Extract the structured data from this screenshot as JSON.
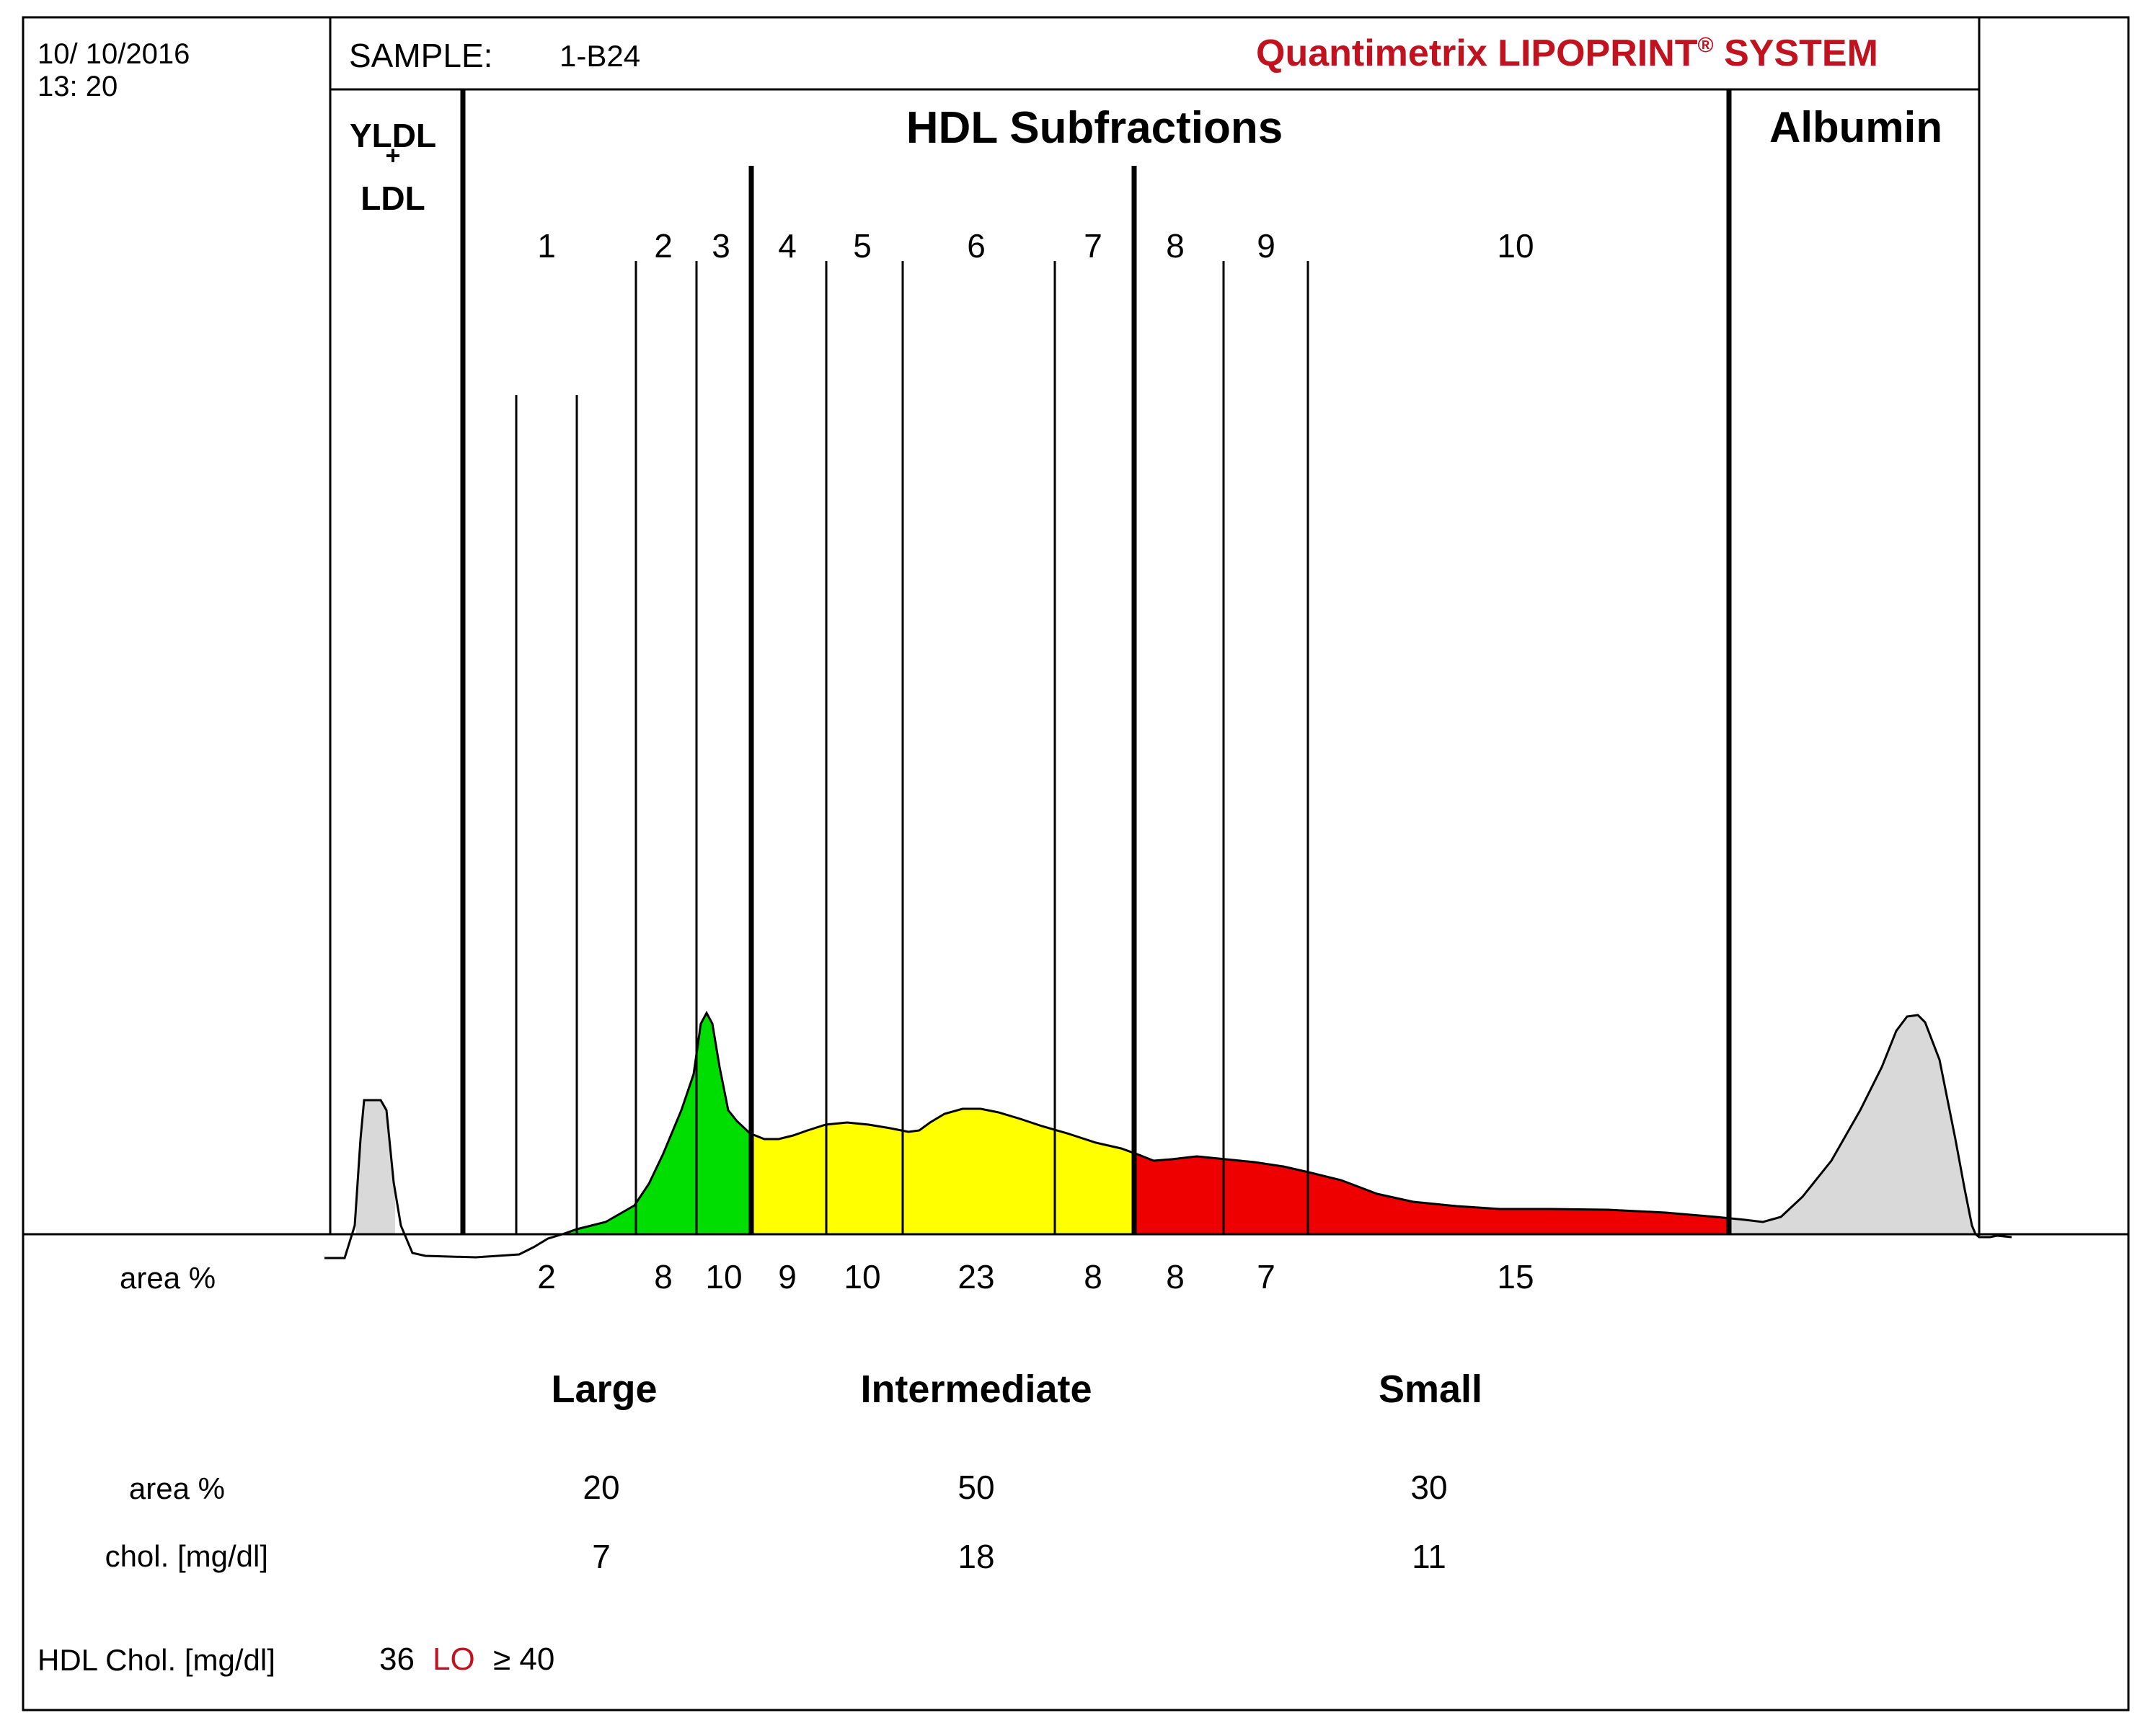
{
  "header": {
    "date": "10/ 10/2016",
    "time": "13: 20",
    "sample_label": "SAMPLE:",
    "sample_id": "1-B24",
    "brand_main": "Quantimetrix LIPOPRINT",
    "brand_mark": "®",
    "brand_suffix": "SYSTEM",
    "brand_color": "#c1121f"
  },
  "chart_data": {
    "type": "area",
    "title": "HDL Subfractions",
    "region_labels": {
      "vldl_ldl": [
        "YLDL",
        "+",
        "LDL"
      ],
      "hdl": "HDL Subfractions",
      "albumin": "Albumin"
    },
    "subfractions": [
      {
        "label": "1",
        "area_pct": "2",
        "color": "#00dd00"
      },
      {
        "label": "2",
        "area_pct": "8",
        "color": "#00dd00"
      },
      {
        "label": "3",
        "area_pct": "10",
        "color": "#00dd00"
      },
      {
        "label": "4",
        "area_pct": "9",
        "color": "#ffff00"
      },
      {
        "label": "5",
        "area_pct": "10",
        "color": "#ffff00"
      },
      {
        "label": "6",
        "area_pct": "23",
        "color": "#ffff00"
      },
      {
        "label": "7",
        "area_pct": "8",
        "color": "#ffff00"
      },
      {
        "label": "8",
        "area_pct": "8",
        "color": "#ee0000"
      },
      {
        "label": "9",
        "area_pct": "7",
        "color": "#ee0000"
      },
      {
        "label": "10",
        "area_pct": "15",
        "color": "#ee0000"
      }
    ],
    "area_row_label": "area %",
    "group_colors": {
      "large": "#00dd00",
      "intermediate": "#ffff00",
      "small": "#ee0000",
      "vldl_albumin": "#d9d9d9"
    },
    "summary": {
      "headers": [
        "Large",
        "Intermediate",
        "Small"
      ],
      "rows": [
        {
          "label": "area %",
          "values": [
            "20",
            "50",
            "30"
          ]
        },
        {
          "label": "chol. [mg/dl]",
          "values": [
            "7",
            "18",
            "11"
          ]
        }
      ]
    },
    "hdl_chol": {
      "label": "HDL Chol. [mg/dl]",
      "value": "36",
      "flag": "LO",
      "reference": "≥ 40"
    }
  }
}
